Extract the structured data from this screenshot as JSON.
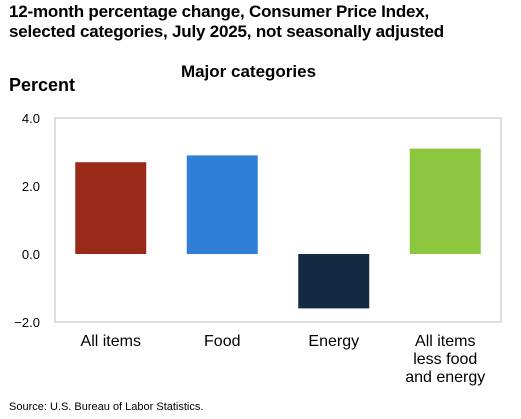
{
  "title_lines": [
    "12-month percentage change, Consumer Price Index,",
    "selected categories, July 2025, not seasonally adjusted"
  ],
  "source": "Source: U.S. Bureau of Labor Statistics.",
  "chart_data": {
    "type": "bar",
    "title": "Major categories",
    "ylabel": "Percent",
    "xlabel": "",
    "ylim": [
      -2.0,
      4.0
    ],
    "yticks": [
      4.0,
      2.0,
      0.0,
      -2.0
    ],
    "ytick_labels": [
      "4.0",
      "2.0",
      "0.0",
      "−2.0"
    ],
    "grid": false,
    "legend": "none",
    "categories": [
      [
        "All items"
      ],
      [
        "Food"
      ],
      [
        "Energy"
      ],
      [
        "All items",
        "less food",
        "and energy"
      ]
    ],
    "values": [
      2.7,
      2.9,
      -1.6,
      3.1
    ],
    "colors": [
      "#992a1a",
      "#2f7fd6",
      "#122a42",
      "#8cc63e"
    ]
  }
}
